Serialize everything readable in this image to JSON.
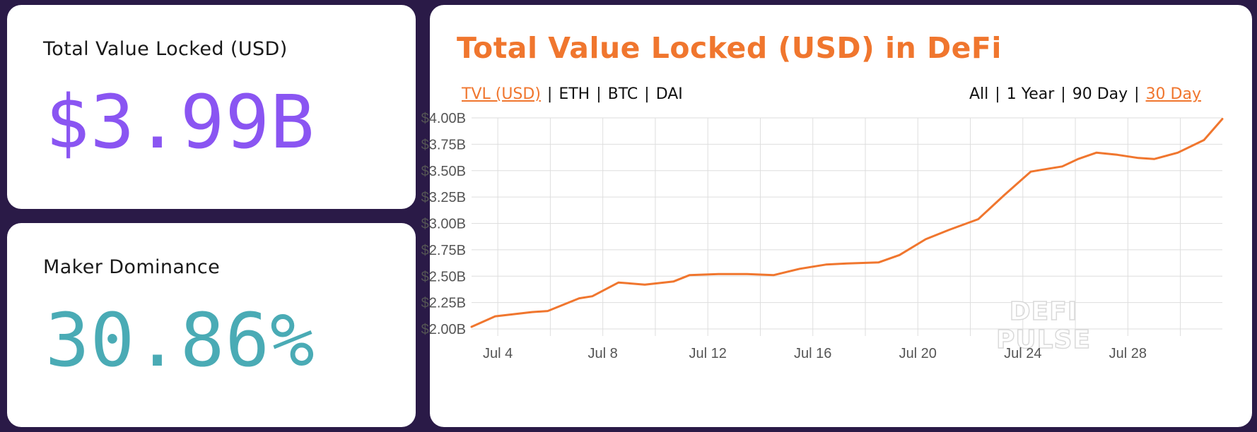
{
  "tvl_card": {
    "label": "Total Value Locked (USD)",
    "value": "$3.99B"
  },
  "maker_card": {
    "label": "Maker Dominance",
    "value": "30.86%"
  },
  "chart_card": {
    "title": "Total Value Locked (USD) in DeFi",
    "metric_tabs": [
      "TVL (USD)",
      "ETH",
      "BTC",
      "DAI"
    ],
    "active_metric": "TVL (USD)",
    "range_tabs": [
      "All",
      "1 Year",
      "90 Day",
      "30 Day"
    ],
    "active_range": "30 Day",
    "separator": "|",
    "watermark_line1": "DEFI",
    "watermark_line2": "PULSE"
  },
  "colors": {
    "background": "#2a1a47",
    "accent_orange": "#f0762e",
    "purple": "#8a55f2",
    "teal": "#4aabb5"
  },
  "chart_data": {
    "type": "line",
    "title": "Total Value Locked (USD) in DeFi",
    "xlabel": "",
    "ylabel": "",
    "ylim": [
      2.0,
      4.0
    ],
    "yticks": [
      2.0,
      2.25,
      2.5,
      2.75,
      3.0,
      3.25,
      3.5,
      3.75,
      4.0
    ],
    "ytick_labels": [
      "$2.00B",
      "$2.25B",
      "$2.50B",
      "$2.75B",
      "$3.00B",
      "$3.25B",
      "$3.50B",
      "$3.75B",
      "$4.00B"
    ],
    "xlim": [
      3.0,
      31.6
    ],
    "xticks": [
      4,
      6,
      8,
      10,
      12,
      14,
      16,
      18,
      20,
      22,
      24,
      26,
      28,
      30
    ],
    "xtick_labels": [
      "Jul 4",
      "Jul 8",
      "Jul 12",
      "Jul 16",
      "Jul 20",
      "Jul 24",
      "Jul 28"
    ],
    "xtick_label_positions": [
      4,
      8,
      12,
      16,
      20,
      24,
      28
    ],
    "series": [
      {
        "name": "TVL (USD)",
        "unit": "billion USD",
        "x": [
          3.0,
          3.9,
          5.3,
          5.9,
          7.1,
          7.6,
          8.6,
          9.6,
          10.7,
          11.3,
          12.4,
          13.5,
          14.5,
          15.5,
          16.5,
          17.3,
          18.5,
          19.3,
          20.3,
          21.2,
          22.3,
          23.3,
          24.3,
          25.0,
          25.5,
          26.1,
          26.8,
          27.6,
          28.4,
          29.0,
          29.9,
          30.9,
          31.6
        ],
        "values": [
          2.02,
          2.12,
          2.16,
          2.17,
          2.29,
          2.31,
          2.44,
          2.42,
          2.45,
          2.51,
          2.52,
          2.52,
          2.51,
          2.57,
          2.61,
          2.62,
          2.63,
          2.7,
          2.85,
          2.94,
          3.04,
          3.27,
          3.49,
          3.52,
          3.54,
          3.61,
          3.67,
          3.65,
          3.62,
          3.61,
          3.67,
          3.79,
          3.99
        ]
      }
    ]
  }
}
